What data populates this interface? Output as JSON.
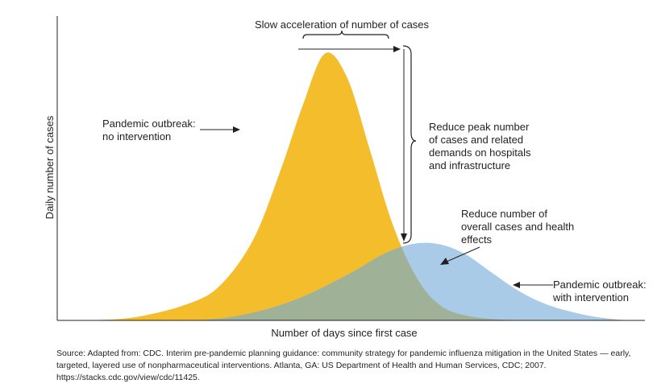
{
  "chart_data": {
    "type": "area",
    "xlabel": "Number of days since first case",
    "ylabel": "Daily number of cases",
    "xlim": [
      0,
      100
    ],
    "ylim": [
      0,
      100
    ],
    "series": [
      {
        "name": "Pandemic outbreak: no intervention",
        "color": "#f3bd2c",
        "x": [
          0,
          10,
          20,
          26,
          32,
          37,
          41,
          45,
          49,
          53,
          57,
          61,
          65,
          70,
          80,
          100
        ],
        "y": [
          0,
          1,
          6,
          13,
          30,
          56,
          80,
          99,
          90,
          64,
          37,
          18,
          7,
          2,
          0,
          0
        ]
      },
      {
        "name": "Pandemic outbreak: with intervention",
        "color": "#a9cbe8",
        "x": [
          0,
          20,
          30,
          40,
          50,
          55,
          60,
          65,
          70,
          75,
          80,
          85,
          90,
          95,
          100
        ],
        "y": [
          0,
          0,
          2,
          8,
          18,
          24,
          28,
          28.5,
          25,
          18,
          11,
          6,
          3,
          1,
          0
        ]
      }
    ],
    "overlap_color": "#9fb297",
    "annotations": {
      "top_brace": "Slow acceleration of number of cases",
      "no_intervention": [
        "Pandemic outbreak:",
        "no intervention"
      ],
      "peak_reduction": [
        "Reduce peak number",
        "of cases and related",
        "demands on hospitals",
        "and infrastructure"
      ],
      "overall_reduction": [
        "Reduce number of",
        "overall cases and health",
        "effects"
      ],
      "with_intervention": [
        "Pandemic outbreak:",
        "with intervention"
      ]
    }
  },
  "source": "Source: Adapted from: CDC. Interim pre-pandemic planning guidance: community strategy for pandemic influenza mitigation in the United States — early, targeted, layered use of nonpharmaceutical interventions. Atlanta, GA: US Department of Health and Human Services, CDC; 2007. https://stacks.cdc.gov/view/cdc/11425."
}
